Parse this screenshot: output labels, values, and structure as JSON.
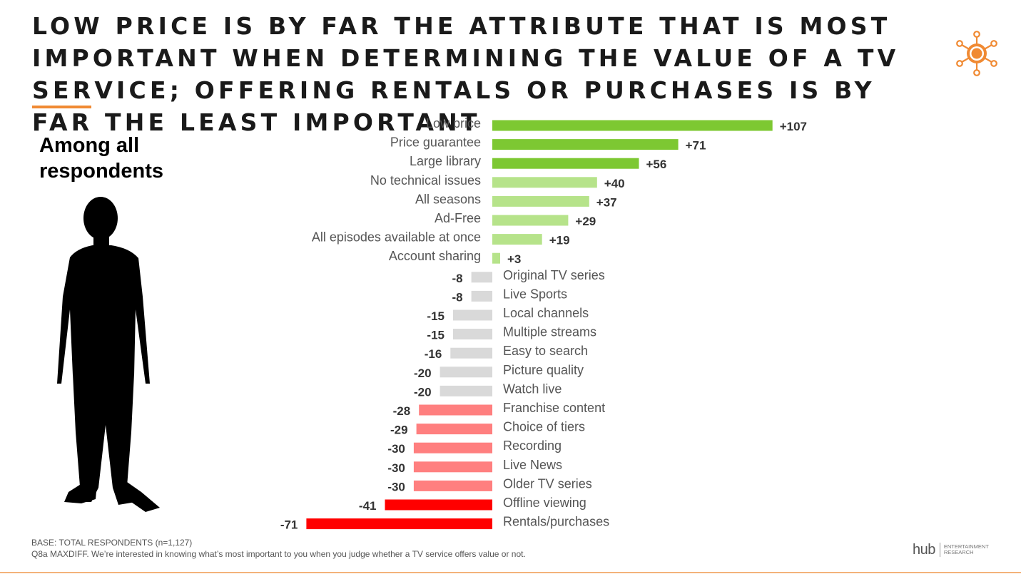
{
  "title": "LOW PRICE IS BY FAR THE ATTRIBUTE THAT IS MOST IMPORTANT WHEN DETERMINING THE VALUE OF A TV SERVICE; OFFERING RENTALS OR PURCHASES IS BY FAR THE LEAST IMPORTANT",
  "subhead": "Among all respondents",
  "footnotes": {
    "base": "BASE: TOTAL RESPONDENTS (n=1,127)",
    "question": "Q8a MAXDIFF. We’re interested in knowing what’s most important to you when you judge whether a TV service offers value or not."
  },
  "brand": {
    "name": "hub",
    "tagline_1": "ENTERTAINMENT",
    "tagline_2": "RESEARCH"
  },
  "icons": {
    "logo": "sun-logo-icon",
    "figure": "person-silhouette-icon"
  },
  "colors": {
    "accent_orange": "#f08a33",
    "strong_positive": "#7dc832",
    "positive": "#b6e38a",
    "neutral": "#d9d9d9",
    "negative": "#ff7f7f",
    "strong_negative": "#ff0000"
  },
  "chart_data": {
    "type": "bar",
    "orientation": "horizontal",
    "categories": [
      "Low price",
      "Price guarantee",
      "Large library",
      "No technical issues",
      "All seasons",
      "Ad-Free",
      "All episodes available at once",
      "Account sharing",
      "Original TV series",
      "Live Sports",
      "Local channels",
      "Multiple streams",
      "Easy to search",
      "Picture quality",
      "Watch live",
      "Franchise content",
      "Choice of tiers",
      "Recording",
      "Live News",
      "Older TV series",
      "Offline viewing",
      "Rentals/purchases"
    ],
    "values": [
      107,
      71,
      56,
      40,
      37,
      29,
      19,
      3,
      -8,
      -8,
      -15,
      -15,
      -16,
      -20,
      -20,
      -28,
      -29,
      -30,
      -30,
      -30,
      -41,
      -71
    ],
    "value_labels": [
      "+107",
      "+71",
      "+56",
      "+40",
      "+37",
      "+29",
      "+19",
      "+3",
      "-8",
      "-8",
      "-15",
      "-15",
      "-16",
      "-20",
      "-20",
      "-28",
      "-29",
      "-30",
      "-30",
      "-30",
      "-41",
      "-71"
    ],
    "tiers": [
      "strong_positive",
      "strong_positive",
      "strong_positive",
      "positive",
      "positive",
      "positive",
      "positive",
      "positive",
      "neutral",
      "neutral",
      "neutral",
      "neutral",
      "neutral",
      "neutral",
      "neutral",
      "negative",
      "negative",
      "negative",
      "negative",
      "negative",
      "strong_negative",
      "strong_negative"
    ],
    "title": "",
    "xlabel": "",
    "ylabel": "",
    "xlim": [
      -71,
      107
    ],
    "grid": false,
    "legend": "none"
  }
}
